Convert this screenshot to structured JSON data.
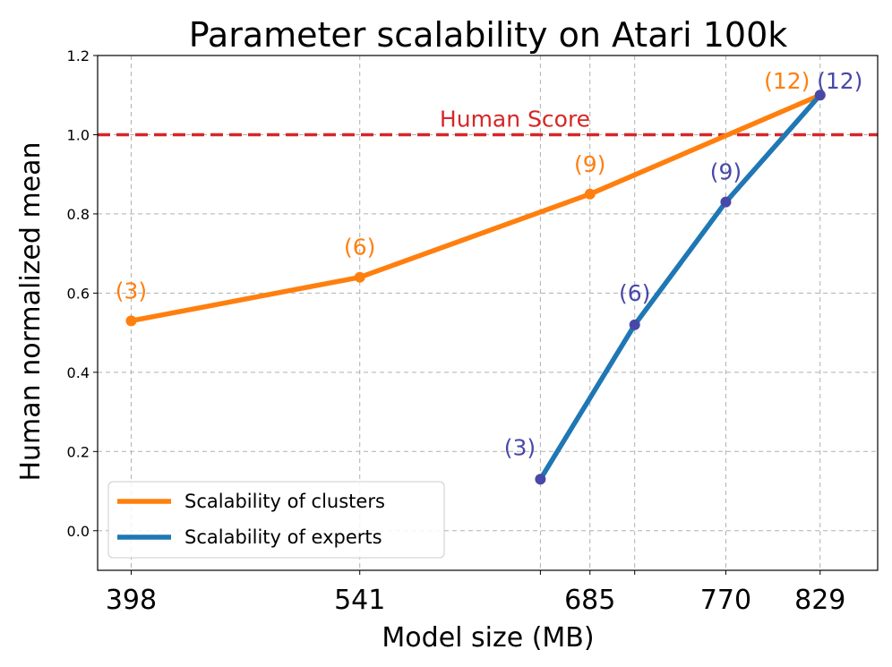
{
  "chart_data": {
    "type": "line",
    "title": "Parameter scalability on Atari 100k",
    "xlabel": "Model size (MB)",
    "ylabel": "Human normalized mean",
    "ylim": [
      -0.1,
      1.2
    ],
    "xlim": [
      377,
      865
    ],
    "yticks": [
      0.0,
      0.2,
      0.4,
      0.6,
      0.8,
      1.0,
      1.2
    ],
    "ytick_labels": [
      "0.0",
      "0.2",
      "0.4",
      "0.6",
      "0.8",
      "1.0",
      "1.2"
    ],
    "xticks_labeled": [
      398,
      541,
      685,
      770,
      829
    ],
    "xtick_labels": [
      "398",
      "541",
      "685",
      "770",
      "829"
    ],
    "xgrid_unlabeled": [
      654,
      713
    ],
    "grid": true,
    "legend_position": "lower-left",
    "reference_line": {
      "label": "Human Score",
      "y": 1.0,
      "color": "#d62728"
    },
    "series": [
      {
        "name": "Scalability of clusters",
        "color": "#ff7f0e",
        "label_color": "#ff7f0e",
        "x": [
          398,
          541,
          685,
          829
        ],
        "y": [
          0.53,
          0.64,
          0.85,
          1.1
        ],
        "point_labels": [
          "(3)",
          "(6)",
          "(9)",
          "(12)"
        ]
      },
      {
        "name": "Scalability of experts",
        "color": "#1f77b4",
        "marker_color": "#4848a8",
        "label_color": "#4848a8",
        "x": [
          654,
          713,
          770,
          829
        ],
        "y": [
          0.13,
          0.52,
          0.83,
          1.1
        ],
        "point_labels": [
          "(3)",
          "(6)",
          "(9)",
          "(12)"
        ]
      }
    ]
  }
}
